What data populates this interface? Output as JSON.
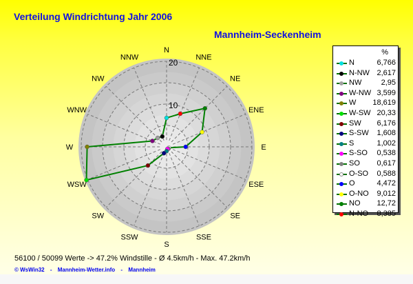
{
  "title": "Verteilung Windrichtung   Jahr 2006",
  "station": "Mannheim-Seckenheim",
  "stats": "56100 / 50099 Werte  -> 47.2% Windstille   -   Ø 4.5km/h  -  Max. 47.2km/h",
  "footer": {
    "copyright": "© WsWin32",
    "sep1": "-",
    "site": "Mannheim-Wetter.info",
    "sep2": "-",
    "city": "Mannheim"
  },
  "chart_data": {
    "type": "radar",
    "unit": "%",
    "rmax": 20,
    "radial_ticks": [
      "10",
      "20"
    ],
    "grid": true,
    "line_color": "#008000",
    "axis_labels": [
      "N",
      "NNE",
      "NE",
      "ENE",
      "E",
      "ESE",
      "SE",
      "SSE",
      "S",
      "SSW",
      "SW",
      "WSW",
      "W",
      "WNW",
      "NW",
      "NNW"
    ],
    "legend": {
      "header": "%",
      "placement": "right",
      "entries": [
        {
          "name": "N",
          "value": "6,766",
          "v": 6.766,
          "angle_index": 0,
          "color": "#00e0e0"
        },
        {
          "name": "N-NW",
          "value": "2,617",
          "v": 2.617,
          "angle_index": 15,
          "color": "#000000"
        },
        {
          "name": "NW",
          "value": "2,95",
          "v": 2.95,
          "angle_index": 14,
          "color": "#a0a0a0"
        },
        {
          "name": "W-NW",
          "value": "3,599",
          "v": 3.599,
          "angle_index": 13,
          "color": "#800080"
        },
        {
          "name": "W",
          "value": "18,619",
          "v": 18.619,
          "angle_index": 12,
          "color": "#808000"
        },
        {
          "name": "W-SW",
          "value": "20,33",
          "v": 20.33,
          "angle_index": 11,
          "color": "#00e000"
        },
        {
          "name": "SW",
          "value": "6,176",
          "v": 6.176,
          "angle_index": 10,
          "color": "#800000"
        },
        {
          "name": "S-SW",
          "value": "1,608",
          "v": 1.608,
          "angle_index": 9,
          "color": "#000080"
        },
        {
          "name": "S",
          "value": "1,002",
          "v": 1.002,
          "angle_index": 8,
          "color": "#008080"
        },
        {
          "name": "S-SO",
          "value": "0,538",
          "v": 0.538,
          "angle_index": 7,
          "color": "#ff00ff"
        },
        {
          "name": "SO",
          "value": "0,617",
          "v": 0.617,
          "angle_index": 6,
          "color": "#808080"
        },
        {
          "name": "O-SO",
          "value": "0,588",
          "v": 0.588,
          "angle_index": 5,
          "color": "#ffffff"
        },
        {
          "name": "O",
          "value": "4,472",
          "v": 4.472,
          "angle_index": 4,
          "color": "#0000ff"
        },
        {
          "name": "O-NO",
          "value": "9,012",
          "v": 9.012,
          "angle_index": 3,
          "color": "#ffff00"
        },
        {
          "name": "NO",
          "value": "12,72",
          "v": 12.72,
          "angle_index": 2,
          "color": "#008000"
        },
        {
          "name": "N-NO",
          "value": "8,385",
          "v": 8.385,
          "angle_index": 1,
          "color": "#ff0000"
        }
      ]
    }
  }
}
